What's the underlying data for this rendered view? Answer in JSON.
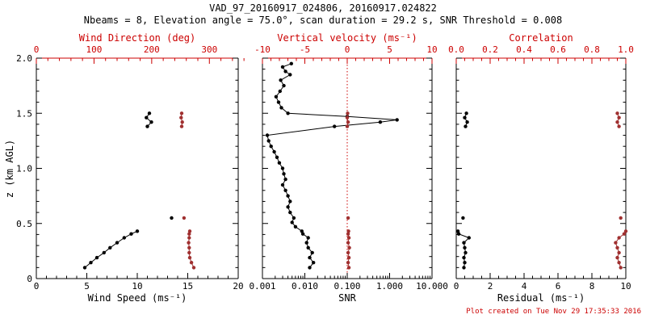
{
  "header": {
    "title": "VAD_97_20160917_024806, 20160917.024822",
    "subtitle": "Nbeams = 8, Elevation angle = 75.0°, scan duration = 29.2 s, SNR Threshold = 0.008"
  },
  "footer": {
    "credit": "Plot created on Tue Nov 29 17:35:33 2016"
  },
  "colors": {
    "background": "#ffffff",
    "black": "#000000",
    "axis_red": "#cc0000",
    "marker_red": "#a03030"
  },
  "y_axis": {
    "label": "z (km AGL)",
    "range": [
      0,
      2
    ],
    "ticks": [
      0,
      0.5,
      1,
      1.5,
      2
    ],
    "tick_labels": [
      "0",
      "0.5",
      "1.0",
      "1.5",
      "2.0"
    ],
    "minor_step": 0.1
  },
  "chart_data": [
    {
      "type": "scatter",
      "name": "wind-panel",
      "bottom_axis": {
        "label": "Wind Speed (ms⁻¹)",
        "range": [
          0,
          20
        ],
        "ticks": [
          0,
          5,
          10,
          15,
          20
        ],
        "tick_labels": [
          "0",
          "5",
          "10",
          "15",
          "20"
        ],
        "minor_step": 1,
        "color": "black"
      },
      "top_axis": {
        "label": "Wind Direction (deg)",
        "range": [
          0,
          350
        ],
        "ticks": [
          0,
          100,
          200,
          300
        ],
        "tick_labels": [
          "0",
          "100",
          "200",
          "300"
        ],
        "minor_step": 20,
        "color": "red"
      },
      "series": [
        {
          "name": "wind-speed-lower",
          "axis": "bottom",
          "color": "black",
          "points": [
            [
              4.8,
              0.1
            ],
            [
              5.4,
              0.145
            ],
            [
              6.0,
              0.19
            ],
            [
              6.7,
              0.235
            ],
            [
              7.3,
              0.28
            ],
            [
              8.0,
              0.325
            ],
            [
              8.7,
              0.37
            ],
            [
              9.4,
              0.405
            ],
            [
              10.0,
              0.43
            ]
          ]
        },
        {
          "name": "wind-speed-mid",
          "axis": "bottom",
          "color": "black",
          "points": [
            [
              13.4,
              0.55
            ]
          ]
        },
        {
          "name": "wind-speed-upper",
          "axis": "bottom",
          "color": "black",
          "points": [
            [
              11.0,
              1.38
            ],
            [
              11.4,
              1.42
            ],
            [
              10.9,
              1.46
            ],
            [
              11.2,
              1.5
            ]
          ]
        },
        {
          "name": "wind-direction-lower",
          "axis": "top",
          "color": "red",
          "points": [
            [
              273,
              0.1
            ],
            [
              269,
              0.145
            ],
            [
              266,
              0.19
            ],
            [
              265,
              0.235
            ],
            [
              265,
              0.28
            ],
            [
              264,
              0.325
            ],
            [
              265,
              0.37
            ],
            [
              265,
              0.405
            ],
            [
              266,
              0.43
            ]
          ]
        },
        {
          "name": "wind-direction-mid",
          "axis": "top",
          "color": "red",
          "points": [
            [
              256,
              0.55
            ]
          ]
        },
        {
          "name": "wind-direction-upper",
          "axis": "top",
          "color": "red",
          "points": [
            [
              252,
              1.38
            ],
            [
              253,
              1.42
            ],
            [
              251,
              1.46
            ],
            [
              252,
              1.5
            ]
          ]
        }
      ]
    },
    {
      "type": "line",
      "name": "snr-panel",
      "bottom_axis": {
        "label": "SNR",
        "range": [
          0.001,
          10
        ],
        "scale": "log",
        "ticks": [
          0.001,
          0.01,
          0.1,
          1,
          10
        ],
        "tick_labels": [
          "0.001",
          "0.010",
          "0.100",
          "1.000",
          "10.000"
        ],
        "color": "black"
      },
      "top_axis": {
        "label": "Vertical velocity (ms⁻¹)",
        "range": [
          -10,
          10
        ],
        "ticks": [
          -10,
          -5,
          0,
          5,
          10
        ],
        "tick_labels": [
          "-10",
          "-5",
          "0",
          "5",
          "10"
        ],
        "minor_step": 1,
        "color": "red"
      },
      "reference_line": {
        "axis": "top",
        "value": 0,
        "style": "dotted",
        "color": "red"
      },
      "series": [
        {
          "name": "snr-profile",
          "axis": "bottom",
          "color": "black",
          "points": [
            [
              0.013,
              0.1
            ],
            [
              0.016,
              0.145
            ],
            [
              0.013,
              0.19
            ],
            [
              0.015,
              0.235
            ],
            [
              0.012,
              0.28
            ],
            [
              0.011,
              0.325
            ],
            [
              0.012,
              0.37
            ],
            [
              0.009,
              0.405
            ],
            [
              0.0085,
              0.43
            ],
            [
              0.006,
              0.47
            ],
            [
              0.005,
              0.51
            ],
            [
              0.0055,
              0.55
            ],
            [
              0.0045,
              0.6
            ],
            [
              0.004,
              0.65
            ],
            [
              0.0045,
              0.7
            ],
            [
              0.004,
              0.75
            ],
            [
              0.0035,
              0.8
            ],
            [
              0.003,
              0.85
            ],
            [
              0.0035,
              0.9
            ],
            [
              0.0032,
              0.95
            ],
            [
              0.003,
              1.0
            ],
            [
              0.0025,
              1.05
            ],
            [
              0.0022,
              1.1
            ],
            [
              0.0019,
              1.15
            ],
            [
              0.0016,
              1.2
            ],
            [
              0.0014,
              1.25
            ],
            [
              0.0013,
              1.3
            ],
            [
              0.05,
              1.38
            ],
            [
              0.6,
              1.42
            ],
            [
              1.5,
              1.44
            ],
            [
              0.1,
              1.47
            ],
            [
              0.004,
              1.5
            ],
            [
              0.0028,
              1.55
            ],
            [
              0.0024,
              1.6
            ],
            [
              0.0021,
              1.65
            ],
            [
              0.0026,
              1.7
            ],
            [
              0.0032,
              1.75
            ],
            [
              0.0027,
              1.8
            ],
            [
              0.0045,
              1.85
            ],
            [
              0.0035,
              1.88
            ],
            [
              0.003,
              1.92
            ],
            [
              0.0048,
              1.95
            ]
          ]
        },
        {
          "name": "vertical-velocity-lower",
          "axis": "top",
          "color": "red",
          "points": [
            [
              0.2,
              0.1
            ],
            [
              0.1,
              0.145
            ],
            [
              0.2,
              0.19
            ],
            [
              0.1,
              0.235
            ],
            [
              0.25,
              0.28
            ],
            [
              0.1,
              0.325
            ],
            [
              0.2,
              0.37
            ],
            [
              0.1,
              0.405
            ],
            [
              0.15,
              0.43
            ]
          ]
        },
        {
          "name": "vertical-velocity-mid",
          "axis": "top",
          "color": "red",
          "points": [
            [
              0.1,
              0.55
            ]
          ]
        },
        {
          "name": "vertical-velocity-upper",
          "axis": "top",
          "color": "red",
          "points": [
            [
              0.0,
              1.38
            ],
            [
              0.1,
              1.42
            ],
            [
              0.0,
              1.46
            ],
            [
              0.05,
              1.5
            ]
          ]
        }
      ]
    },
    {
      "type": "scatter",
      "name": "residual-panel",
      "bottom_axis": {
        "label": "Residual (ms⁻¹)",
        "range": [
          0,
          10
        ],
        "ticks": [
          0,
          2,
          4,
          6,
          8,
          10
        ],
        "tick_labels": [
          "0",
          "2",
          "4",
          "6",
          "8",
          "10"
        ],
        "minor_step": 0.5,
        "color": "black"
      },
      "top_axis": {
        "label": "Correlation",
        "range": [
          0,
          1
        ],
        "ticks": [
          0,
          0.2,
          0.4,
          0.6,
          0.8,
          1
        ],
        "tick_labels": [
          "0.0",
          "0.2",
          "0.4",
          "0.6",
          "0.8",
          "1.0"
        ],
        "minor_step": 0.05,
        "color": "red"
      },
      "series": [
        {
          "name": "residual-lower",
          "axis": "bottom",
          "color": "black",
          "points": [
            [
              0.45,
              0.1
            ],
            [
              0.5,
              0.145
            ],
            [
              0.45,
              0.19
            ],
            [
              0.55,
              0.235
            ],
            [
              0.5,
              0.28
            ],
            [
              0.45,
              0.325
            ],
            [
              0.75,
              0.37
            ],
            [
              0.15,
              0.405
            ],
            [
              0.1,
              0.43
            ]
          ]
        },
        {
          "name": "residual-mid",
          "axis": "bottom",
          "color": "black",
          "points": [
            [
              0.4,
              0.55
            ]
          ]
        },
        {
          "name": "residual-upper",
          "axis": "bottom",
          "color": "black",
          "points": [
            [
              0.55,
              1.38
            ],
            [
              0.65,
              1.42
            ],
            [
              0.5,
              1.46
            ],
            [
              0.6,
              1.5
            ]
          ]
        },
        {
          "name": "correlation-lower",
          "axis": "top",
          "color": "red",
          "points": [
            [
              0.97,
              0.1
            ],
            [
              0.96,
              0.145
            ],
            [
              0.95,
              0.19
            ],
            [
              0.96,
              0.235
            ],
            [
              0.95,
              0.28
            ],
            [
              0.94,
              0.325
            ],
            [
              0.96,
              0.37
            ],
            [
              0.99,
              0.405
            ],
            [
              1.0,
              0.43
            ]
          ]
        },
        {
          "name": "correlation-mid",
          "axis": "top",
          "color": "red",
          "points": [
            [
              0.97,
              0.55
            ]
          ]
        },
        {
          "name": "correlation-upper",
          "axis": "top",
          "color": "red",
          "points": [
            [
              0.96,
              1.38
            ],
            [
              0.95,
              1.42
            ],
            [
              0.96,
              1.46
            ],
            [
              0.95,
              1.5
            ]
          ]
        }
      ]
    }
  ]
}
